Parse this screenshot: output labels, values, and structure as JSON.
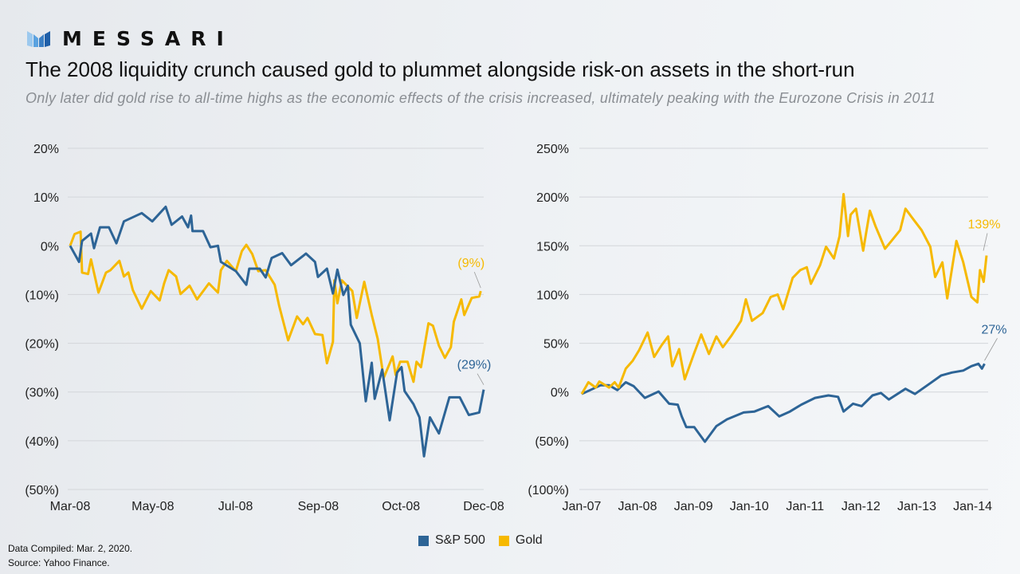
{
  "logo": {
    "text": "MESSARI"
  },
  "title": "The 2008 liquidity crunch caused gold to plummet alongside risk-on assets in the short-run",
  "subtitle": "Only later did gold rise to all-time highs as the economic effects of the crisis increased, ultimately peaking with the Eurozone Crisis in 2011",
  "colors": {
    "sp500": "#2d6496",
    "gold": "#f6b900",
    "grid": "#d3d6da"
  },
  "legend": {
    "items": [
      {
        "label": "S&P 500",
        "color": "#2d6496"
      },
      {
        "label": "Gold",
        "color": "#f6b900"
      }
    ]
  },
  "footer": {
    "compiled": "Data Compiled: Mar. 2, 2020.",
    "source": "Source: Yahoo Finance."
  },
  "chart_data": [
    {
      "type": "line",
      "ylim": [
        -50,
        20
      ],
      "xlim": [
        "2008-03-03",
        "2008-12-05"
      ],
      "grid": true,
      "yticks": [
        "20%",
        "10%",
        "0%",
        "(10%)",
        "(20%)",
        "(30%)",
        "(40%)",
        "(50%)"
      ],
      "xticks": [
        "Mar-08",
        "May-08",
        "Jul-08",
        "Sep-08",
        "Oct-08",
        "Dec-08"
      ],
      "annotations": [
        {
          "series": "Gold",
          "text": "(9%)"
        },
        {
          "series": "S&P 500",
          "text": "(29%)"
        }
      ],
      "series": [
        {
          "name": "S&P 500",
          "color": "#2d6496",
          "points": [
            [
              "2008-03-03",
              0
            ],
            [
              "2008-03-09",
              -3.3
            ],
            [
              "2008-03-11",
              1
            ],
            [
              "2008-03-17",
              2.5
            ],
            [
              "2008-03-19",
              -0.5
            ],
            [
              "2008-03-23",
              3.8
            ],
            [
              "2008-03-29",
              3.8
            ],
            [
              "2008-04-03",
              0.5
            ],
            [
              "2008-04-08",
              5
            ],
            [
              "2008-04-20",
              6.7
            ],
            [
              "2008-04-27",
              5
            ],
            [
              "2008-05-06",
              8
            ],
            [
              "2008-05-10",
              4.3
            ],
            [
              "2008-05-17",
              6
            ],
            [
              "2008-05-21",
              3.8
            ],
            [
              "2008-05-23",
              6.2
            ],
            [
              "2008-05-24",
              3
            ],
            [
              "2008-05-31",
              3
            ],
            [
              "2008-06-05",
              -0.3
            ],
            [
              "2008-06-10",
              0
            ],
            [
              "2008-06-12",
              -3.3
            ],
            [
              "2008-06-22",
              -5.2
            ],
            [
              "2008-06-29",
              -8
            ],
            [
              "2008-07-01",
              -4.7
            ],
            [
              "2008-07-08",
              -4.7
            ],
            [
              "2008-07-12",
              -6.5
            ],
            [
              "2008-07-16",
              -2.5
            ],
            [
              "2008-07-23",
              -1.5
            ],
            [
              "2008-07-29",
              -4
            ],
            [
              "2008-08-08",
              -1.6
            ],
            [
              "2008-08-14",
              -3.3
            ],
            [
              "2008-08-16",
              -6.4
            ],
            [
              "2008-08-22",
              -4.7
            ],
            [
              "2008-08-26",
              -9.8
            ],
            [
              "2008-08-29",
              -4.9
            ],
            [
              "2008-09-02",
              -10.1
            ],
            [
              "2008-09-05",
              -8.2
            ],
            [
              "2008-09-07",
              -16.2
            ],
            [
              "2008-09-13",
              -20
            ],
            [
              "2008-09-17",
              -31.9
            ],
            [
              "2008-09-21",
              -24
            ],
            [
              "2008-09-23",
              -31.4
            ],
            [
              "2008-09-28",
              -25.4
            ],
            [
              "2008-10-03",
              -35.8
            ],
            [
              "2008-10-08",
              -26
            ],
            [
              "2008-10-11",
              -24.9
            ],
            [
              "2008-10-13",
              -29.8
            ],
            [
              "2008-10-19",
              -32.5
            ],
            [
              "2008-10-23",
              -35.2
            ],
            [
              "2008-10-26",
              -43.2
            ],
            [
              "2008-10-30",
              -35.2
            ],
            [
              "2008-11-05",
              -38.5
            ],
            [
              "2008-11-12",
              -31.1
            ],
            [
              "2008-11-19",
              -31.1
            ],
            [
              "2008-11-25",
              -34.7
            ],
            [
              "2008-12-02",
              -34.2
            ],
            [
              "2008-12-05",
              -29.5
            ]
          ]
        },
        {
          "name": "Gold",
          "color": "#f6b900",
          "points": [
            [
              "2008-03-03",
              0
            ],
            [
              "2008-03-06",
              2.4
            ],
            [
              "2008-03-10",
              2.9
            ],
            [
              "2008-03-11",
              -5.5
            ],
            [
              "2008-03-15",
              -5.8
            ],
            [
              "2008-03-17",
              -2.8
            ],
            [
              "2008-03-22",
              -9.6
            ],
            [
              "2008-03-27",
              -5.5
            ],
            [
              "2008-03-30",
              -5
            ],
            [
              "2008-04-05",
              -3.1
            ],
            [
              "2008-04-08",
              -6.3
            ],
            [
              "2008-04-11",
              -5.5
            ],
            [
              "2008-04-14",
              -9.1
            ],
            [
              "2008-04-20",
              -12.9
            ],
            [
              "2008-04-26",
              -9.3
            ],
            [
              "2008-05-02",
              -11.2
            ],
            [
              "2008-05-05",
              -7.7
            ],
            [
              "2008-05-08",
              -5
            ],
            [
              "2008-05-13",
              -6.3
            ],
            [
              "2008-05-16",
              -9.9
            ],
            [
              "2008-05-22",
              -8.2
            ],
            [
              "2008-05-27",
              -11
            ],
            [
              "2008-06-04",
              -7.7
            ],
            [
              "2008-06-10",
              -9.6
            ],
            [
              "2008-06-12",
              -5
            ],
            [
              "2008-06-16",
              -3.1
            ],
            [
              "2008-06-22",
              -5.2
            ],
            [
              "2008-06-26",
              -1.1
            ],
            [
              "2008-06-29",
              0.2
            ],
            [
              "2008-07-03",
              -1.7
            ],
            [
              "2008-07-07",
              -5.2
            ],
            [
              "2008-07-12",
              -5
            ],
            [
              "2008-07-18",
              -8
            ],
            [
              "2008-07-21",
              -12.3
            ],
            [
              "2008-07-27",
              -19.4
            ],
            [
              "2008-08-02",
              -14.5
            ],
            [
              "2008-08-06",
              -16.1
            ],
            [
              "2008-08-09",
              -14.8
            ],
            [
              "2008-08-14",
              -18.1
            ],
            [
              "2008-08-19",
              -18.3
            ],
            [
              "2008-08-22",
              -24.1
            ],
            [
              "2008-08-26",
              -19.7
            ],
            [
              "2008-08-27",
              -7.1
            ],
            [
              "2008-08-29",
              -11.8
            ],
            [
              "2008-09-01",
              -7.1
            ],
            [
              "2008-09-08",
              -9.3
            ],
            [
              "2008-09-11",
              -14.8
            ],
            [
              "2008-09-16",
              -7.4
            ],
            [
              "2008-09-21",
              -14.2
            ],
            [
              "2008-09-25",
              -19.1
            ],
            [
              "2008-09-29",
              -27.1
            ],
            [
              "2008-10-05",
              -22.7
            ],
            [
              "2008-10-07",
              -26.5
            ],
            [
              "2008-10-10",
              -23.8
            ],
            [
              "2008-10-15",
              -23.8
            ],
            [
              "2008-10-19",
              -27.9
            ],
            [
              "2008-10-21",
              -23.8
            ],
            [
              "2008-10-24",
              -24.9
            ],
            [
              "2008-10-29",
              -15.9
            ],
            [
              "2008-11-01",
              -16.4
            ],
            [
              "2008-11-05",
              -20.5
            ],
            [
              "2008-11-09",
              -23
            ],
            [
              "2008-11-13",
              -20.8
            ],
            [
              "2008-11-15",
              -15.6
            ],
            [
              "2008-11-20",
              -11
            ],
            [
              "2008-11-22",
              -14.2
            ],
            [
              "2008-11-27",
              -10.7
            ],
            [
              "2008-12-02",
              -10.4
            ],
            [
              "2008-12-03",
              -9.3
            ]
          ]
        }
      ]
    },
    {
      "type": "line",
      "ylim": [
        -100,
        250
      ],
      "xlim": [
        "2007-01-03",
        "2014-04-04"
      ],
      "grid": true,
      "yticks": [
        "250%",
        "200%",
        "150%",
        "100%",
        "50%",
        "0%",
        "(50%)",
        "(100%)"
      ],
      "xticks": [
        "Jan-07",
        "Jan-08",
        "Jan-09",
        "Jan-10",
        "Jan-11",
        "Jan-12",
        "Jan-13",
        "Jan-14"
      ],
      "annotations": [
        {
          "series": "Gold",
          "text": "139%"
        },
        {
          "series": "S&P 500",
          "text": "27%"
        }
      ],
      "series": [
        {
          "name": "S&P 500",
          "color": "#2d6496",
          "points": [
            [
              "2007-01-03",
              -2
            ],
            [
              "2007-02-27",
              2
            ],
            [
              "2007-05-07",
              7
            ],
            [
              "2007-07-01",
              7
            ],
            [
              "2007-08-24",
              2
            ],
            [
              "2007-10-18",
              10
            ],
            [
              "2007-12-09",
              6
            ],
            [
              "2008-02-20",
              -6
            ],
            [
              "2008-05-20",
              0.5
            ],
            [
              "2008-07-28",
              -12
            ],
            [
              "2008-09-22",
              -13
            ],
            [
              "2008-10-18",
              -25
            ],
            [
              "2008-11-17",
              -36
            ],
            [
              "2009-01-08",
              -36
            ],
            [
              "2009-03-19",
              -51
            ],
            [
              "2009-06-02",
              -35
            ],
            [
              "2009-08-10",
              -28
            ],
            [
              "2009-11-27",
              -21
            ],
            [
              "2010-02-06",
              -20
            ],
            [
              "2010-05-07",
              -14.5
            ],
            [
              "2010-07-18",
              -25
            ],
            [
              "2010-09-26",
              -20
            ],
            [
              "2010-12-09",
              -13
            ],
            [
              "2011-03-09",
              -6
            ],
            [
              "2011-06-05",
              -3.5
            ],
            [
              "2011-08-07",
              -5
            ],
            [
              "2011-09-12",
              -20
            ],
            [
              "2011-11-13",
              -12
            ],
            [
              "2012-01-08",
              -14.5
            ],
            [
              "2012-03-19",
              -3.5
            ],
            [
              "2012-05-13",
              -1
            ],
            [
              "2012-07-04",
              -7.7
            ],
            [
              "2012-10-21",
              3.3
            ],
            [
              "2012-12-22",
              -2
            ],
            [
              "2013-04-01",
              9
            ],
            [
              "2013-06-12",
              17
            ],
            [
              "2013-08-20",
              20
            ],
            [
              "2013-11-03",
              22
            ],
            [
              "2013-12-26",
              26.5
            ],
            [
              "2014-02-10",
              29
            ],
            [
              "2014-03-05",
              24
            ],
            [
              "2014-03-22",
              29
            ]
          ]
        },
        {
          "name": "Gold",
          "color": "#f6b900",
          "points": [
            [
              "2007-01-03",
              -2
            ],
            [
              "2007-02-16",
              10
            ],
            [
              "2007-04-04",
              4.6
            ],
            [
              "2007-04-28",
              10.7
            ],
            [
              "2007-07-01",
              4.6
            ],
            [
              "2007-08-07",
              10
            ],
            [
              "2007-09-02",
              4.6
            ],
            [
              "2007-10-18",
              24
            ],
            [
              "2007-12-02",
              32
            ],
            [
              "2008-01-14",
              43
            ],
            [
              "2008-03-09",
              61
            ],
            [
              "2008-04-21",
              36
            ],
            [
              "2008-06-09",
              48
            ],
            [
              "2008-07-21",
              57
            ],
            [
              "2008-08-17",
              26.5
            ],
            [
              "2008-10-01",
              44
            ],
            [
              "2008-11-07",
              13
            ],
            [
              "2009-01-08",
              40
            ],
            [
              "2009-02-23",
              59
            ],
            [
              "2009-04-14",
              39
            ],
            [
              "2009-06-02",
              57
            ],
            [
              "2009-07-14",
              46
            ],
            [
              "2009-09-09",
              58
            ],
            [
              "2009-11-10",
              73
            ],
            [
              "2009-12-12",
              95
            ],
            [
              "2010-01-21",
              73
            ],
            [
              "2010-04-01",
              81
            ],
            [
              "2010-05-23",
              97.5
            ],
            [
              "2010-07-08",
              100
            ],
            [
              "2010-08-13",
              85
            ],
            [
              "2010-10-14",
              117
            ],
            [
              "2010-12-02",
              125
            ],
            [
              "2011-01-14",
              128
            ],
            [
              "2011-02-10",
              111
            ],
            [
              "2011-04-11",
              130
            ],
            [
              "2011-05-20",
              149
            ],
            [
              "2011-07-11",
              137
            ],
            [
              "2011-08-17",
              160
            ],
            [
              "2011-09-12",
              203
            ],
            [
              "2011-10-11",
              160
            ],
            [
              "2011-10-28",
              182
            ],
            [
              "2011-12-02",
              188
            ],
            [
              "2012-01-18",
              145
            ],
            [
              "2012-03-02",
              186
            ],
            [
              "2012-04-08",
              170
            ],
            [
              "2012-06-09",
              147
            ],
            [
              "2012-07-21",
              155
            ],
            [
              "2012-09-16",
              166
            ],
            [
              "2012-10-21",
              188
            ],
            [
              "2012-12-12",
              177
            ],
            [
              "2013-02-03",
              166
            ],
            [
              "2013-04-01",
              149
            ],
            [
              "2013-05-03",
              118
            ],
            [
              "2013-06-19",
              133
            ],
            [
              "2013-07-21",
              96
            ],
            [
              "2013-09-19",
              155
            ],
            [
              "2013-11-03",
              133
            ],
            [
              "2013-12-26",
              97.5
            ],
            [
              "2014-02-03",
              92
            ],
            [
              "2014-02-20",
              125
            ],
            [
              "2014-03-16",
              113
            ],
            [
              "2014-04-04",
              140
            ]
          ]
        }
      ]
    }
  ]
}
